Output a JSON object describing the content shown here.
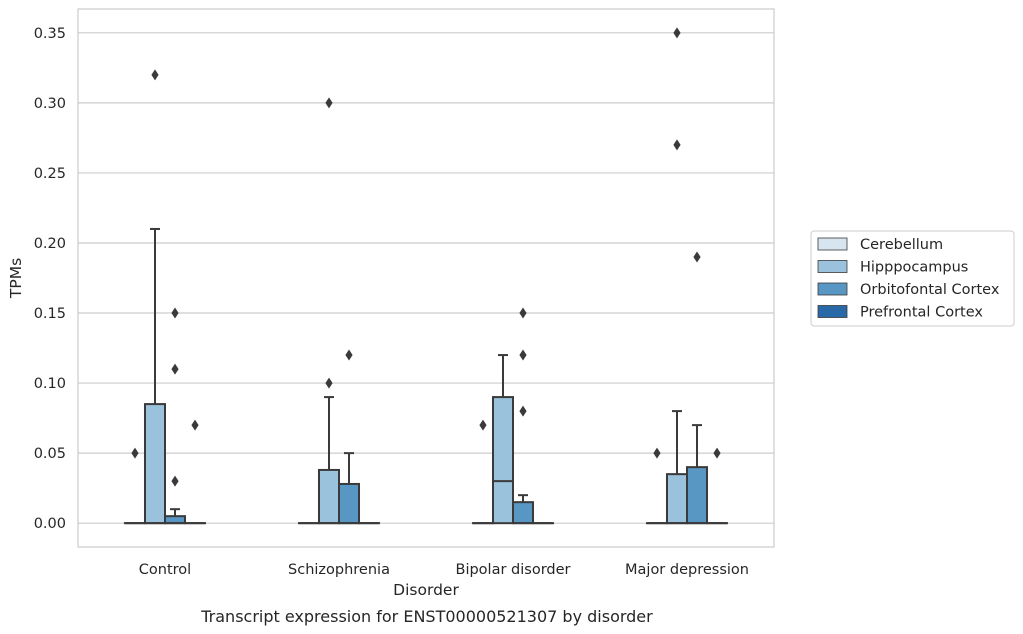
{
  "chart_data": {
    "type": "box",
    "title": "Transcript expression for ENST00000521307 by disorder",
    "xlabel": "Disorder",
    "ylabel": "TPMs",
    "categories": [
      "Control",
      "Schizophrenia",
      "Bipolar disorder",
      "Major depression"
    ],
    "ylim": [
      -0.017,
      0.367
    ],
    "yticks": [
      0.0,
      0.05,
      0.1,
      0.15,
      0.2,
      0.25,
      0.3,
      0.35
    ],
    "ytick_labels": [
      "0.00",
      "0.05",
      "0.10",
      "0.15",
      "0.20",
      "0.25",
      "0.30",
      "0.35"
    ],
    "grid": "horizontal",
    "legend_position": "right",
    "series": [
      {
        "name": "Cerebellum",
        "color": "#d7e5f1",
        "boxes": [
          {
            "q1": 0,
            "median": 0,
            "q3": 0,
            "whisker_low": 0,
            "whisker_high": 0,
            "outliers": [
              0.05
            ]
          },
          {
            "q1": 0,
            "median": 0,
            "q3": 0,
            "whisker_low": 0,
            "whisker_high": 0,
            "outliers": []
          },
          {
            "q1": 0,
            "median": 0,
            "q3": 0,
            "whisker_low": 0,
            "whisker_high": 0,
            "outliers": [
              0.07
            ]
          },
          {
            "q1": 0,
            "median": 0,
            "q3": 0,
            "whisker_low": 0,
            "whisker_high": 0,
            "outliers": [
              0.05
            ]
          }
        ]
      },
      {
        "name": "Hipppocampus",
        "color": "#9bc2dc",
        "boxes": [
          {
            "q1": 0,
            "median": 0,
            "q3": 0.085,
            "whisker_low": 0,
            "whisker_high": 0.21,
            "outliers": [
              0.32
            ]
          },
          {
            "q1": 0,
            "median": 0,
            "q3": 0.038,
            "whisker_low": 0,
            "whisker_high": 0.09,
            "outliers": [
              0.1,
              0.3
            ]
          },
          {
            "q1": 0,
            "median": 0.03,
            "q3": 0.09,
            "whisker_low": 0,
            "whisker_high": 0.12,
            "outliers": []
          },
          {
            "q1": 0,
            "median": 0,
            "q3": 0.035,
            "whisker_low": 0,
            "whisker_high": 0.08,
            "outliers": [
              0.27,
              0.35
            ]
          }
        ]
      },
      {
        "name": "Orbitofontal Cortex",
        "color": "#5896c4",
        "boxes": [
          {
            "q1": 0,
            "median": 0,
            "q3": 0.005,
            "whisker_low": 0,
            "whisker_high": 0.01,
            "outliers": [
              0.03,
              0.11,
              0.15
            ]
          },
          {
            "q1": 0,
            "median": 0,
            "q3": 0.028,
            "whisker_low": 0,
            "whisker_high": 0.05,
            "outliers": [
              0.12
            ]
          },
          {
            "q1": 0,
            "median": 0,
            "q3": 0.015,
            "whisker_low": 0,
            "whisker_high": 0.02,
            "outliers": [
              0.08,
              0.12,
              0.15
            ]
          },
          {
            "q1": 0,
            "median": 0,
            "q3": 0.04,
            "whisker_low": 0,
            "whisker_high": 0.07,
            "outliers": [
              0.19
            ]
          }
        ]
      },
      {
        "name": "Prefrontal Cortex",
        "color": "#2a69a8",
        "boxes": [
          {
            "q1": 0,
            "median": 0,
            "q3": 0,
            "whisker_low": 0,
            "whisker_high": 0,
            "outliers": [
              0.07
            ]
          },
          {
            "q1": 0,
            "median": 0,
            "q3": 0,
            "whisker_low": 0,
            "whisker_high": 0,
            "outliers": []
          },
          {
            "q1": 0,
            "median": 0,
            "q3": 0,
            "whisker_low": 0,
            "whisker_high": 0,
            "outliers": []
          },
          {
            "q1": 0,
            "median": 0,
            "q3": 0,
            "whisker_low": 0,
            "whisker_high": 0,
            "outliers": [
              0.05
            ]
          }
        ]
      }
    ]
  }
}
